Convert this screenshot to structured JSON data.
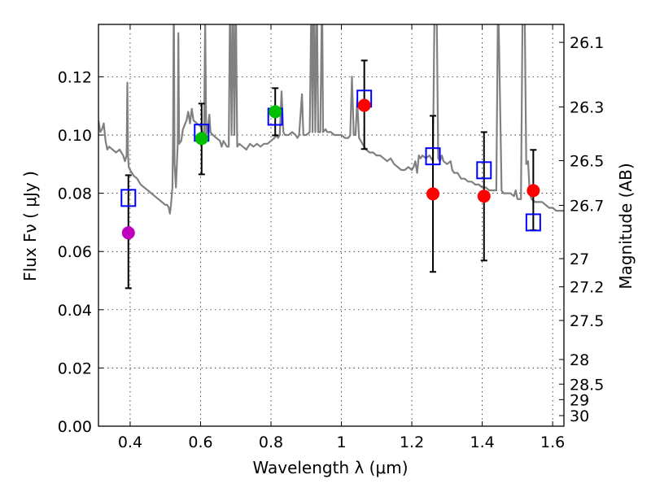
{
  "chart_data": {
    "type": "scatter",
    "title": "",
    "xlabel": "Wavelength  λ (μm)",
    "ylabel": "Flux  Fν  ( μJy )",
    "ylabel_right": "Magnitude (AB)",
    "xlim": [
      0.31,
      1.632
    ],
    "ylim": [
      0.0,
      0.138
    ],
    "grid": true,
    "x_ticks": [
      0.4,
      0.6,
      0.8,
      1.0,
      1.2,
      1.4,
      1.6
    ],
    "x_tick_labels": [
      "0.4",
      "0.6",
      "0.8",
      "1",
      "1.2",
      "1.4",
      "1.6"
    ],
    "y_ticks": [
      0.0,
      0.02,
      0.04,
      0.06,
      0.08,
      0.1,
      0.12
    ],
    "y_tick_labels": [
      "0.00",
      "0.02",
      "0.04",
      "0.06",
      "0.08",
      "0.10",
      "0.12"
    ],
    "right_ticks": [
      26.1,
      26.3,
      26.5,
      26.7,
      27,
      27.2,
      27.5,
      28,
      28.5,
      29,
      30
    ],
    "right_tick_labels": [
      "26.1",
      "26.3",
      "26.5",
      "26.7",
      "27",
      "27.2",
      "27.5",
      "28",
      "28.5",
      "29",
      "30"
    ],
    "colors": {
      "spectrum": "#808080",
      "model_square": "#0000ff",
      "errorbar": "#000000",
      "uv": "#bf00bf",
      "optical": "#00bf00",
      "nir": "#ff0000"
    },
    "observed": [
      {
        "x": 0.395,
        "y": 0.0664,
        "err_hi": 0.0862,
        "err_lo": 0.0474,
        "color": "uv"
      },
      {
        "x": 0.603,
        "y": 0.0988,
        "err_hi": 0.1108,
        "err_lo": 0.0865,
        "color": "optical"
      },
      {
        "x": 0.812,
        "y": 0.108,
        "err_hi": 0.1161,
        "err_lo": 0.0999,
        "color": "optical"
      },
      {
        "x": 1.065,
        "y": 0.1102,
        "err_hi": 0.1256,
        "err_lo": 0.0952,
        "color": "nir"
      },
      {
        "x": 1.26,
        "y": 0.0798,
        "err_hi": 0.1066,
        "err_lo": 0.053,
        "color": "nir"
      },
      {
        "x": 1.405,
        "y": 0.079,
        "err_hi": 0.101,
        "err_lo": 0.0569,
        "color": "nir"
      },
      {
        "x": 1.545,
        "y": 0.0809,
        "err_hi": 0.0949,
        "err_lo": 0.0673,
        "color": "nir"
      }
    ],
    "model_photometry": [
      {
        "x": 0.395,
        "y": 0.0784
      },
      {
        "x": 0.603,
        "y": 0.1008
      },
      {
        "x": 0.812,
        "y": 0.1063
      },
      {
        "x": 1.065,
        "y": 0.1125
      },
      {
        "x": 1.26,
        "y": 0.0927
      },
      {
        "x": 1.405,
        "y": 0.0879
      },
      {
        "x": 1.545,
        "y": 0.07
      }
    ],
    "spectrum": [
      [
        0.31,
        0.105
      ],
      [
        0.315,
        0.101
      ],
      [
        0.32,
        0.102
      ],
      [
        0.325,
        0.104
      ],
      [
        0.33,
        0.098
      ],
      [
        0.335,
        0.095
      ],
      [
        0.34,
        0.096
      ],
      [
        0.35,
        0.095
      ],
      [
        0.36,
        0.094
      ],
      [
        0.37,
        0.095
      ],
      [
        0.38,
        0.093
      ],
      [
        0.385,
        0.091
      ],
      [
        0.39,
        0.093
      ],
      [
        0.392,
        0.118
      ],
      [
        0.394,
        0.093
      ],
      [
        0.396,
        0.089
      ],
      [
        0.4,
        0.088
      ],
      [
        0.41,
        0.086
      ],
      [
        0.42,
        0.085
      ],
      [
        0.43,
        0.083
      ],
      [
        0.44,
        0.082
      ],
      [
        0.45,
        0.081
      ],
      [
        0.46,
        0.08
      ],
      [
        0.47,
        0.079
      ],
      [
        0.48,
        0.078
      ],
      [
        0.49,
        0.077
      ],
      [
        0.5,
        0.076
      ],
      [
        0.505,
        0.076
      ],
      [
        0.51,
        0.075
      ],
      [
        0.513,
        0.073
      ],
      [
        0.516,
        0.076
      ],
      [
        0.52,
        0.082
      ],
      [
        0.522,
        0.1
      ],
      [
        0.524,
        0.15
      ],
      [
        0.526,
        0.09
      ],
      [
        0.53,
        0.082
      ],
      [
        0.535,
        0.097
      ],
      [
        0.537,
        0.135
      ],
      [
        0.539,
        0.097
      ],
      [
        0.545,
        0.098
      ],
      [
        0.55,
        0.102
      ],
      [
        0.56,
        0.105
      ],
      [
        0.565,
        0.108
      ],
      [
        0.57,
        0.104
      ],
      [
        0.575,
        0.109
      ],
      [
        0.58,
        0.105
      ],
      [
        0.59,
        0.104
      ],
      [
        0.6,
        0.103
      ],
      [
        0.605,
        0.101
      ],
      [
        0.61,
        0.1
      ],
      [
        0.613,
        0.14
      ],
      [
        0.616,
        0.1
      ],
      [
        0.62,
        0.102
      ],
      [
        0.625,
        0.107
      ],
      [
        0.628,
        0.101
      ],
      [
        0.635,
        0.1
      ],
      [
        0.645,
        0.099
      ],
      [
        0.655,
        0.098
      ],
      [
        0.66,
        0.096
      ],
      [
        0.665,
        0.098
      ],
      [
        0.67,
        0.097
      ],
      [
        0.675,
        0.096
      ],
      [
        0.68,
        0.096
      ],
      [
        0.684,
        0.15
      ],
      [
        0.688,
        0.1
      ],
      [
        0.692,
        0.15
      ],
      [
        0.696,
        0.1
      ],
      [
        0.7,
        0.15
      ],
      [
        0.704,
        0.096
      ],
      [
        0.71,
        0.097
      ],
      [
        0.72,
        0.096
      ],
      [
        0.73,
        0.095
      ],
      [
        0.74,
        0.097
      ],
      [
        0.75,
        0.096
      ],
      [
        0.76,
        0.097
      ],
      [
        0.77,
        0.096
      ],
      [
        0.78,
        0.097
      ],
      [
        0.79,
        0.097
      ],
      [
        0.8,
        0.098
      ],
      [
        0.81,
        0.099
      ],
      [
        0.815,
        0.1
      ],
      [
        0.82,
        0.099
      ],
      [
        0.825,
        0.1
      ],
      [
        0.83,
        0.115
      ],
      [
        0.835,
        0.101
      ],
      [
        0.84,
        0.1
      ],
      [
        0.85,
        0.1
      ],
      [
        0.86,
        0.101
      ],
      [
        0.87,
        0.1
      ],
      [
        0.875,
        0.099
      ],
      [
        0.88,
        0.1
      ],
      [
        0.888,
        0.114
      ],
      [
        0.892,
        0.1
      ],
      [
        0.9,
        0.1
      ],
      [
        0.91,
        0.101
      ],
      [
        0.915,
        0.15
      ],
      [
        0.918,
        0.101
      ],
      [
        0.922,
        0.15
      ],
      [
        0.926,
        0.101
      ],
      [
        0.93,
        0.15
      ],
      [
        0.934,
        0.101
      ],
      [
        0.94,
        0.101
      ],
      [
        0.945,
        0.15
      ],
      [
        0.948,
        0.101
      ],
      [
        0.955,
        0.102
      ],
      [
        0.96,
        0.101
      ],
      [
        0.97,
        0.101
      ],
      [
        0.98,
        0.1
      ],
      [
        0.99,
        0.1
      ],
      [
        1.0,
        0.1
      ],
      [
        1.01,
        0.099
      ],
      [
        1.02,
        0.099
      ],
      [
        1.025,
        0.1
      ],
      [
        1.03,
        0.12
      ],
      [
        1.035,
        0.1
      ],
      [
        1.04,
        0.1
      ],
      [
        1.045,
        0.112
      ],
      [
        1.05,
        0.099
      ],
      [
        1.06,
        0.097
      ],
      [
        1.07,
        0.095
      ],
      [
        1.08,
        0.094
      ],
      [
        1.09,
        0.094
      ],
      [
        1.1,
        0.093
      ],
      [
        1.11,
        0.093
      ],
      [
        1.12,
        0.092
      ],
      [
        1.13,
        0.091
      ],
      [
        1.14,
        0.092
      ],
      [
        1.15,
        0.09
      ],
      [
        1.16,
        0.089
      ],
      [
        1.17,
        0.088
      ],
      [
        1.18,
        0.088
      ],
      [
        1.19,
        0.089
      ],
      [
        1.2,
        0.088
      ],
      [
        1.205,
        0.089
      ],
      [
        1.21,
        0.091
      ],
      [
        1.215,
        0.087
      ],
      [
        1.22,
        0.093
      ],
      [
        1.225,
        0.092
      ],
      [
        1.23,
        0.093
      ],
      [
        1.24,
        0.092
      ],
      [
        1.25,
        0.093
      ],
      [
        1.255,
        0.092
      ],
      [
        1.26,
        0.091
      ],
      [
        1.265,
        0.15
      ],
      [
        1.27,
        0.15
      ],
      [
        1.275,
        0.092
      ],
      [
        1.28,
        0.091
      ],
      [
        1.285,
        0.093
      ],
      [
        1.29,
        0.091
      ],
      [
        1.3,
        0.09
      ],
      [
        1.31,
        0.091
      ],
      [
        1.315,
        0.088
      ],
      [
        1.32,
        0.087
      ],
      [
        1.33,
        0.087
      ],
      [
        1.34,
        0.085
      ],
      [
        1.35,
        0.085
      ],
      [
        1.36,
        0.084
      ],
      [
        1.37,
        0.084
      ],
      [
        1.38,
        0.083
      ],
      [
        1.39,
        0.083
      ],
      [
        1.4,
        0.082
      ],
      [
        1.41,
        0.082
      ],
      [
        1.42,
        0.081
      ],
      [
        1.43,
        0.081
      ],
      [
        1.44,
        0.081
      ],
      [
        1.445,
        0.15
      ],
      [
        1.455,
        0.081
      ],
      [
        1.46,
        0.08
      ],
      [
        1.47,
        0.08
      ],
      [
        1.48,
        0.08
      ],
      [
        1.49,
        0.079
      ],
      [
        1.495,
        0.081
      ],
      [
        1.5,
        0.078
      ],
      [
        1.51,
        0.078
      ],
      [
        1.515,
        0.15
      ],
      [
        1.52,
        0.15
      ],
      [
        1.525,
        0.09
      ],
      [
        1.53,
        0.091
      ],
      [
        1.535,
        0.08
      ],
      [
        1.54,
        0.078
      ],
      [
        1.55,
        0.077
      ],
      [
        1.56,
        0.077
      ],
      [
        1.57,
        0.077
      ],
      [
        1.58,
        0.076
      ],
      [
        1.59,
        0.075
      ],
      [
        1.6,
        0.075
      ],
      [
        1.61,
        0.074
      ],
      [
        1.62,
        0.074
      ],
      [
        1.632,
        0.074
      ]
    ]
  }
}
